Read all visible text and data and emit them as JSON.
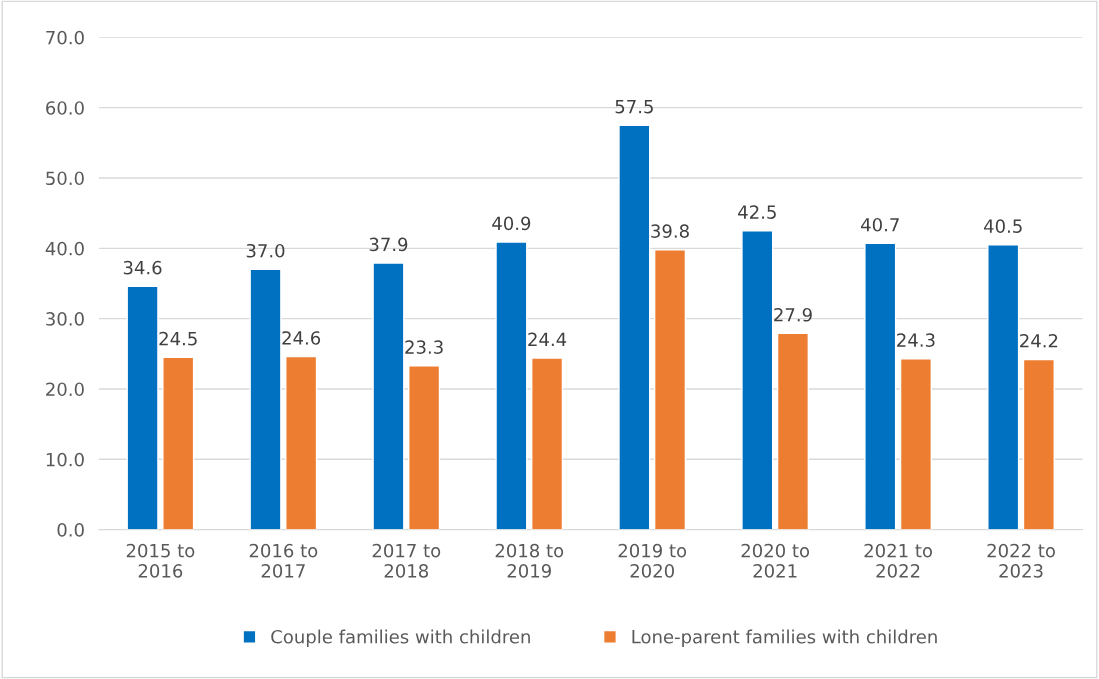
{
  "chart_data": {
    "type": "bar",
    "categories": [
      "2015 to 2016",
      "2016 to 2017",
      "2017 to 2018",
      "2018 to 2019",
      "2019 to 2020",
      "2020 to 2021",
      "2021 to 2022",
      "2022 to 2023"
    ],
    "series": [
      {
        "name": "Couple families with children",
        "color": "#0070c0",
        "values": [
          34.6,
          37.0,
          37.9,
          40.9,
          57.5,
          42.5,
          40.7,
          40.5
        ],
        "value_labels": [
          "34.6",
          "37.0",
          "37.9",
          "40.9",
          "57.5",
          "42.5",
          "40.7",
          "40.5"
        ]
      },
      {
        "name": "Lone-parent families with children",
        "color": "#ed7d31",
        "values": [
          24.5,
          24.6,
          23.3,
          24.4,
          39.8,
          27.9,
          24.3,
          24.2
        ],
        "value_labels": [
          "24.5",
          "24.6",
          "23.3",
          "24.4",
          "39.8",
          "27.9",
          "24.3",
          "24.2"
        ]
      }
    ],
    "ylim": [
      0,
      70
    ],
    "yticks": [
      {
        "value": 0,
        "label": "0.0"
      },
      {
        "value": 10,
        "label": "10.0"
      },
      {
        "value": 20,
        "label": "20.0"
      },
      {
        "value": 30,
        "label": "30.0"
      },
      {
        "value": 40,
        "label": "40.0"
      },
      {
        "value": 50,
        "label": "50.0"
      },
      {
        "value": 60,
        "label": "60.0"
      },
      {
        "value": 70,
        "label": "70.0"
      }
    ],
    "grid": "y",
    "legend": "bottom"
  }
}
